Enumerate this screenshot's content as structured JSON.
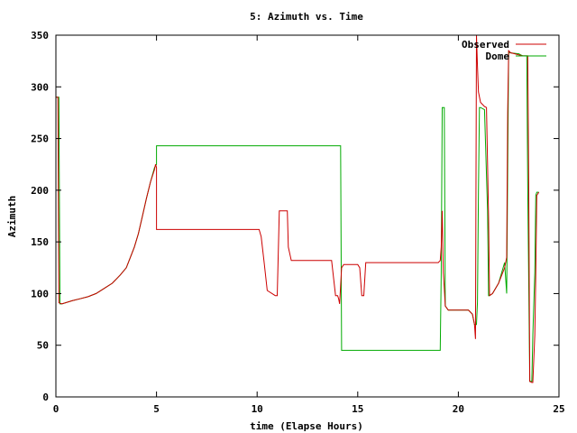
{
  "chart_data": {
    "type": "line",
    "title": "5: Azimuth vs. Time",
    "xlabel": "time (Elapse Hours)",
    "ylabel": "Azimuth",
    "xlim": [
      0,
      25
    ],
    "ylim": [
      0,
      350
    ],
    "xticks": [
      0,
      5,
      10,
      15,
      20,
      25
    ],
    "yticks": [
      0,
      50,
      100,
      150,
      200,
      250,
      300,
      350
    ],
    "grid": false,
    "legend_position": "top-right",
    "series": [
      {
        "name": "Observed",
        "color": "#cc0000",
        "x": [
          0.0,
          0.1,
          0.15,
          0.3,
          0.8,
          1.2,
          1.6,
          2.0,
          2.4,
          2.8,
          3.2,
          3.5,
          3.7,
          3.9,
          4.1,
          4.3,
          4.5,
          4.7,
          4.9,
          4.95,
          5.0,
          5.0,
          10.1,
          10.2,
          10.35,
          10.5,
          10.9,
          11.0,
          11.1,
          11.5,
          11.55,
          11.7,
          13.6,
          13.7,
          13.9,
          14.0,
          14.05,
          14.1,
          14.2,
          14.3,
          15.0,
          15.1,
          15.2,
          15.3,
          15.4,
          19.0,
          19.1,
          19.15,
          19.2,
          19.25,
          19.3,
          19.35,
          19.5,
          20.0,
          20.5,
          20.7,
          20.8,
          20.85,
          20.9,
          20.95,
          21.0,
          21.1,
          21.3,
          21.4,
          21.5,
          21.55,
          21.7,
          22.0,
          22.3,
          22.4,
          22.45,
          22.5,
          22.6,
          22.8,
          23.0,
          23.2,
          23.45,
          23.5,
          23.55,
          23.65,
          23.7,
          23.8,
          23.85,
          23.9,
          24.0
        ],
        "y": [
          290,
          290,
          91,
          90,
          93,
          95,
          97,
          100,
          105,
          110,
          118,
          125,
          135,
          145,
          158,
          175,
          192,
          208,
          220,
          225,
          222,
          162,
          162,
          155,
          130,
          103,
          98,
          98,
          180,
          180,
          145,
          132,
          132,
          132,
          98,
          98,
          95,
          90,
          125,
          128,
          128,
          125,
          98,
          98,
          130,
          130,
          132,
          145,
          180,
          120,
          105,
          88,
          84,
          84,
          84,
          80,
          70,
          56,
          350,
          320,
          295,
          285,
          281,
          280,
          175,
          98,
          100,
          110,
          125,
          135,
          275,
          335,
          333,
          332,
          331,
          330,
          330,
          200,
          15,
          14,
          14,
          60,
          120,
          195,
          198
        ]
      },
      {
        "name": "Dome",
        "color": "#00aa00",
        "x": [
          0.0,
          0.15,
          0.2,
          0.3,
          0.8,
          1.2,
          1.6,
          2.0,
          2.4,
          2.8,
          3.2,
          3.5,
          3.7,
          3.9,
          4.1,
          4.3,
          4.5,
          4.7,
          4.9,
          5.0,
          5.0,
          14.15,
          14.2,
          19.1,
          19.15,
          19.2,
          19.3,
          19.35,
          19.5,
          20.0,
          20.5,
          20.7,
          20.8,
          20.9,
          20.95,
          21.0,
          21.05,
          21.1,
          21.3,
          21.45,
          21.5,
          21.55,
          21.7,
          22.0,
          22.3,
          22.4,
          22.5,
          22.55,
          23.0,
          23.1,
          23.2,
          23.4,
          23.45,
          23.55,
          23.65,
          23.7,
          23.8,
          23.85,
          23.9,
          24.0
        ],
        "y": [
          290,
          290,
          90,
          90,
          93,
          95,
          97,
          100,
          105,
          110,
          118,
          125,
          135,
          145,
          158,
          175,
          192,
          208,
          222,
          225,
          243,
          243,
          45,
          45,
          120,
          280,
          280,
          88,
          84,
          84,
          84,
          80,
          70,
          70,
          92,
          200,
          280,
          280,
          278,
          180,
          98,
          98,
          100,
          110,
          130,
          100,
          335,
          333,
          332,
          331,
          330,
          330,
          200,
          15,
          15,
          60,
          120,
          195,
          198,
          198
        ]
      }
    ]
  }
}
